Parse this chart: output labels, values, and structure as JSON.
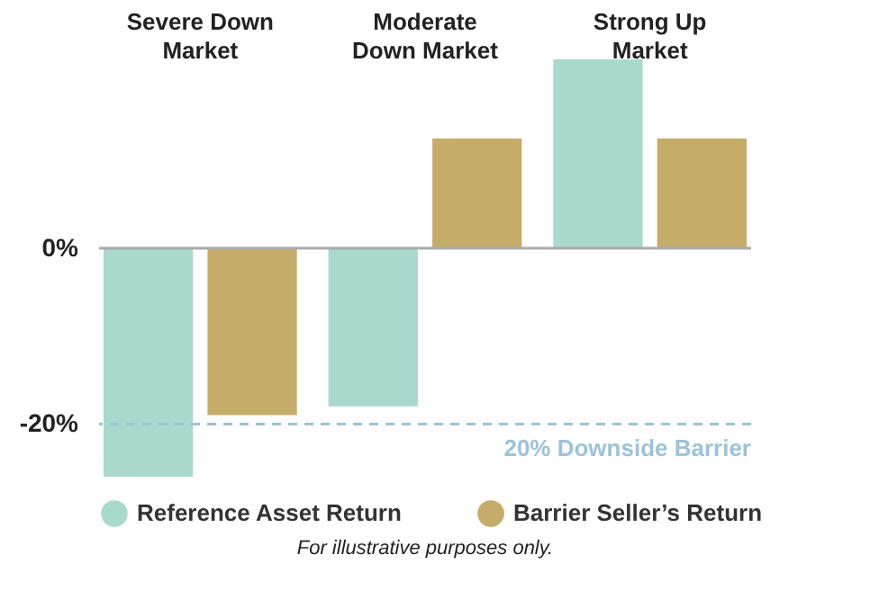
{
  "chart_data": {
    "type": "bar",
    "categories": [
      "Severe Down Market",
      "Moderate Down Market",
      "Strong Up Market"
    ],
    "series": [
      {
        "name": "Reference Asset Return",
        "color": "#a9d9cd",
        "values": [
          -26,
          -18,
          21.5
        ]
      },
      {
        "name": "Barrier Seller’s Return",
        "color": "#c5ac69",
        "values": [
          -19,
          12.5,
          12.5
        ]
      }
    ],
    "ylim": [
      -26,
      21.5
    ],
    "yticks": [
      {
        "value": -20,
        "label": "-20%"
      },
      {
        "value": 0,
        "label": "0%"
      }
    ],
    "ref_lines": [
      {
        "axis": "y",
        "value": -20,
        "label": "20% Downside Barrier",
        "color": "#9cc3d8",
        "line_style": "dashed"
      }
    ],
    "legend": "bottom",
    "annotations": [
      "For illustrative purposes only."
    ]
  }
}
